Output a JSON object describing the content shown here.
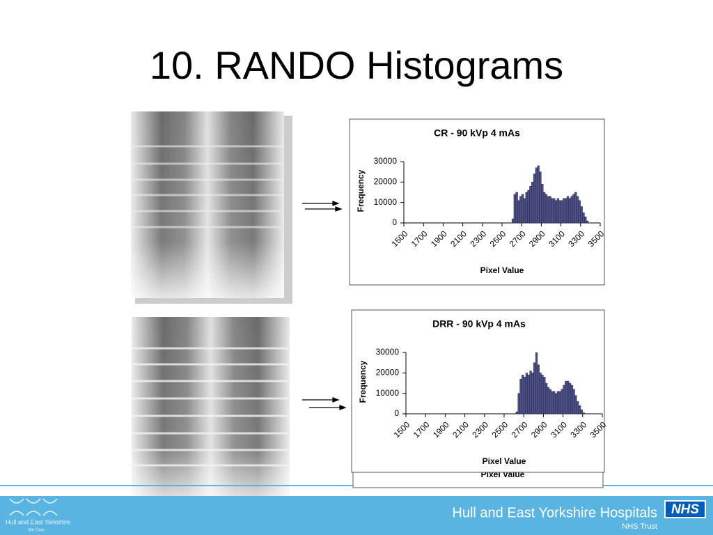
{
  "title": "10. RANDO Histograms",
  "footer": {
    "org": "Hull and East Yorkshire Hospitals",
    "trust": "NHS Trust",
    "badge": "NHS",
    "logo_text": "Hull and East Yorkshire",
    "logo_motto": "We Care"
  },
  "chart_data": [
    {
      "type": "histogram",
      "title": "CR - 90 kVp 4 mAs",
      "x_label": "Pixel Value",
      "y_label": "Frequency",
      "color": "#4b4f86",
      "bins": [
        2600,
        2620,
        2640,
        2660,
        2680,
        2700,
        2720,
        2740,
        2760,
        2780,
        2800,
        2820,
        2840,
        2860,
        2880,
        2900,
        2920,
        2940,
        2960,
        2980,
        3000,
        3020,
        3040,
        3060,
        3080,
        3100,
        3120,
        3140,
        3160,
        3180,
        3200,
        3220,
        3240,
        3260,
        3280,
        3300,
        3320,
        3340,
        3360,
        3380
      ],
      "values": [
        2000,
        14000,
        15000,
        11000,
        13000,
        14000,
        12000,
        15000,
        16000,
        18000,
        20000,
        24000,
        27000,
        28000,
        25000,
        19000,
        15000,
        14000,
        13000,
        13000,
        12000,
        12000,
        11000,
        12000,
        11000,
        11000,
        12000,
        12000,
        13000,
        12000,
        13000,
        14000,
        15000,
        13000,
        11000,
        8000,
        5000,
        3000,
        1000
      ],
      "xlim": [
        1500,
        3500
      ],
      "xticks": [
        1500,
        1700,
        1900,
        2100,
        2300,
        2500,
        2700,
        2900,
        3100,
        3300,
        3500
      ],
      "ylim": [
        0,
        30000
      ],
      "yticks": [
        0,
        10000,
        20000,
        30000
      ]
    },
    {
      "type": "histogram",
      "title": "DRR - 90 kVp 4 mAs",
      "x_label": "Pixel Value",
      "y_label": "Frequency",
      "color": "#4b4f86",
      "bins": [
        2620,
        2640,
        2660,
        2680,
        2700,
        2720,
        2740,
        2760,
        2780,
        2800,
        2820,
        2840,
        2860,
        2880,
        2900,
        2920,
        2940,
        2960,
        2980,
        3000,
        3020,
        3040,
        3060,
        3080,
        3100,
        3120,
        3140,
        3160,
        3180,
        3200,
        3220,
        3240,
        3260,
        3280,
        3300,
        3320
      ],
      "values": [
        1000,
        10000,
        17000,
        19000,
        18000,
        20000,
        19000,
        21000,
        20000,
        25000,
        30000,
        24000,
        20000,
        19000,
        18000,
        15000,
        13000,
        12000,
        11000,
        11000,
        10000,
        11000,
        11000,
        12000,
        14000,
        16000,
        16000,
        15000,
        14000,
        12000,
        9000,
        6000,
        4000,
        2000,
        500
      ],
      "xlim": [
        1500,
        3500
      ],
      "xticks": [
        1500,
        1700,
        1900,
        2100,
        2300,
        2500,
        2700,
        2900,
        3100,
        3300,
        3500
      ],
      "ylim": [
        0,
        30000
      ],
      "yticks": [
        0,
        10000,
        20000,
        30000
      ]
    }
  ]
}
